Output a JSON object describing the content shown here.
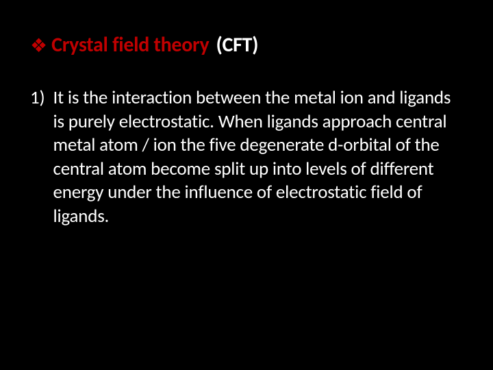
{
  "slide": {
    "title": {
      "bullet_glyph": "❖",
      "heading_red": "Crystal field theory",
      "heading_white": "(CFT)"
    },
    "body": {
      "marker": "1)",
      "text": "It is the interaction between the metal ion and ligands is purely electrostatic. When ligands approach central metal atom / ion the five degenerate  d-orbital of the central atom become split up into levels of different energy under the influence of electrostatic  field of ligands."
    },
    "colors": {
      "background": "#000000",
      "accent": "#c00000",
      "text": "#ffffff"
    },
    "typography": {
      "title_fontsize": 30,
      "body_fontsize": 27,
      "title_weight": 700,
      "body_weight": 400
    }
  }
}
